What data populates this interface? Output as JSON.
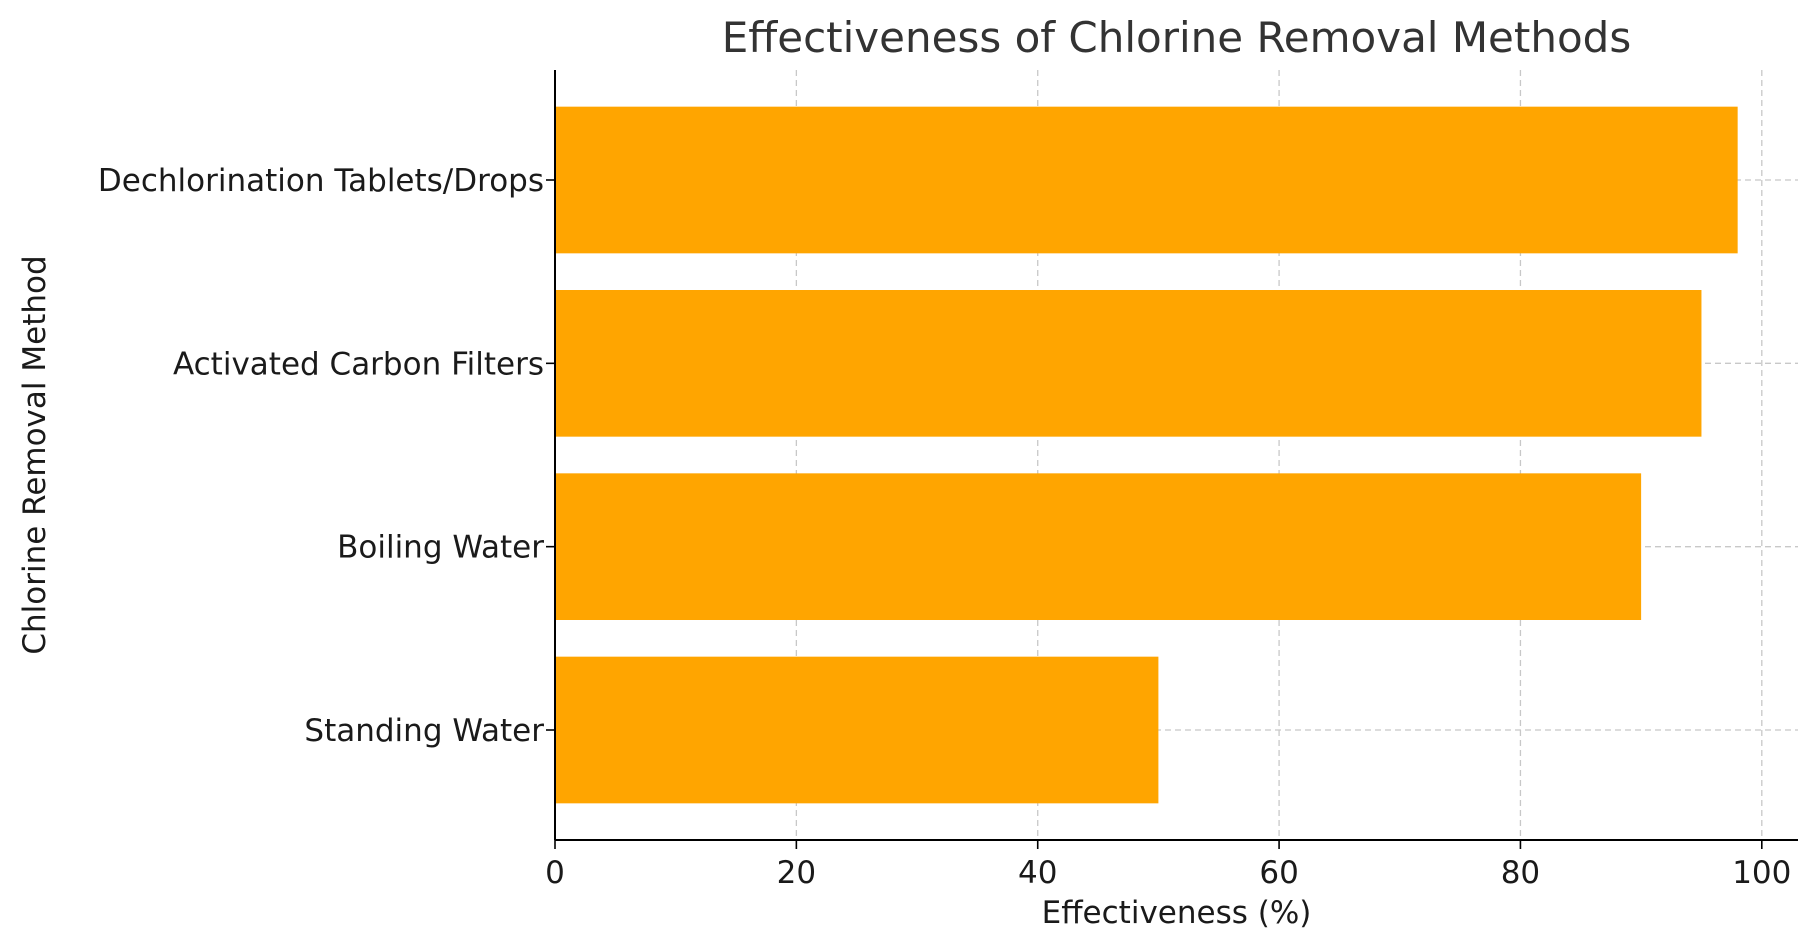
{
  "chart_data": {
    "type": "bar",
    "orientation": "horizontal",
    "title": "Effectiveness of Chlorine Removal Methods",
    "xlabel": "Effectiveness (%)",
    "ylabel": "Chlorine Removal Method",
    "categories": [
      "Standing Water",
      "Boiling Water",
      "Activated Carbon Filters",
      "Dechlorination Tablets/Drops"
    ],
    "values": [
      50,
      90,
      95,
      98
    ],
    "xlim": [
      0,
      103
    ],
    "xticks": [
      0,
      20,
      40,
      60,
      80,
      100
    ],
    "bar_color": "#ffa500",
    "grid": true,
    "grid_style": "dashed"
  }
}
